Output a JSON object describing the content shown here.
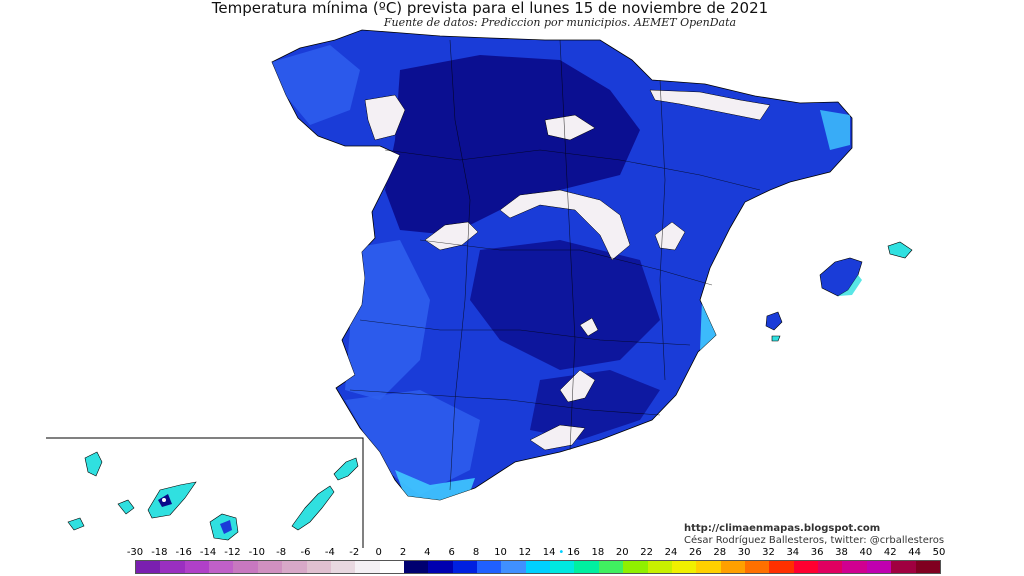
{
  "header": {
    "title": "Temperatura mínima (ºC) prevista para el lunes 15 de noviembre de 2021",
    "subtitle": "Fuente de datos: Prediccion por municipios. AEMET OpenData"
  },
  "credits": {
    "url": "http://climaenmapas.blogspot.com",
    "author": "César Rodríguez Ballesteros, twitter: @crballesteros"
  },
  "legend": {
    "labels": [
      "-30",
      "-18",
      "-16",
      "-14",
      "-12",
      "-10",
      "-8",
      "-6",
      "-4",
      "-2",
      "0",
      "2",
      "4",
      "6",
      "8",
      "10",
      "12",
      "14",
      "16",
      "18",
      "20",
      "22",
      "24",
      "26",
      "28",
      "30",
      "32",
      "34",
      "36",
      "38",
      "40",
      "42",
      "44",
      "50"
    ],
    "colors": [
      "#7a1fb0",
      "#9a2fc0",
      "#b040c8",
      "#c060c8",
      "#c878c0",
      "#d090c0",
      "#d8a8c8",
      "#e0c0d0",
      "#e8d8e0",
      "#f4f0f4",
      "#ffffff",
      "#000070",
      "#0000b0",
      "#0020e0",
      "#2060ff",
      "#4090ff",
      "#00d0ff",
      "#00e8e0",
      "#00f0a0",
      "#40f060",
      "#90f000",
      "#c8f000",
      "#f0f000",
      "#ffd000",
      "#ffa000",
      "#ff7000",
      "#ff3000",
      "#ff0030",
      "#e00060",
      "#d00090",
      "#c000b0",
      "#a00040",
      "#800020"
    ],
    "marker_color": "#00d0ff"
  },
  "map": {
    "colors": {
      "land_main": "#1a3cd8",
      "land_deep": "#0a0a8a",
      "land_light": "#3060f0",
      "coast_cyan": "#40c8ff",
      "islands": "#30e0e0",
      "snow": "#f4f0f4",
      "borders": "#000000"
    }
  }
}
